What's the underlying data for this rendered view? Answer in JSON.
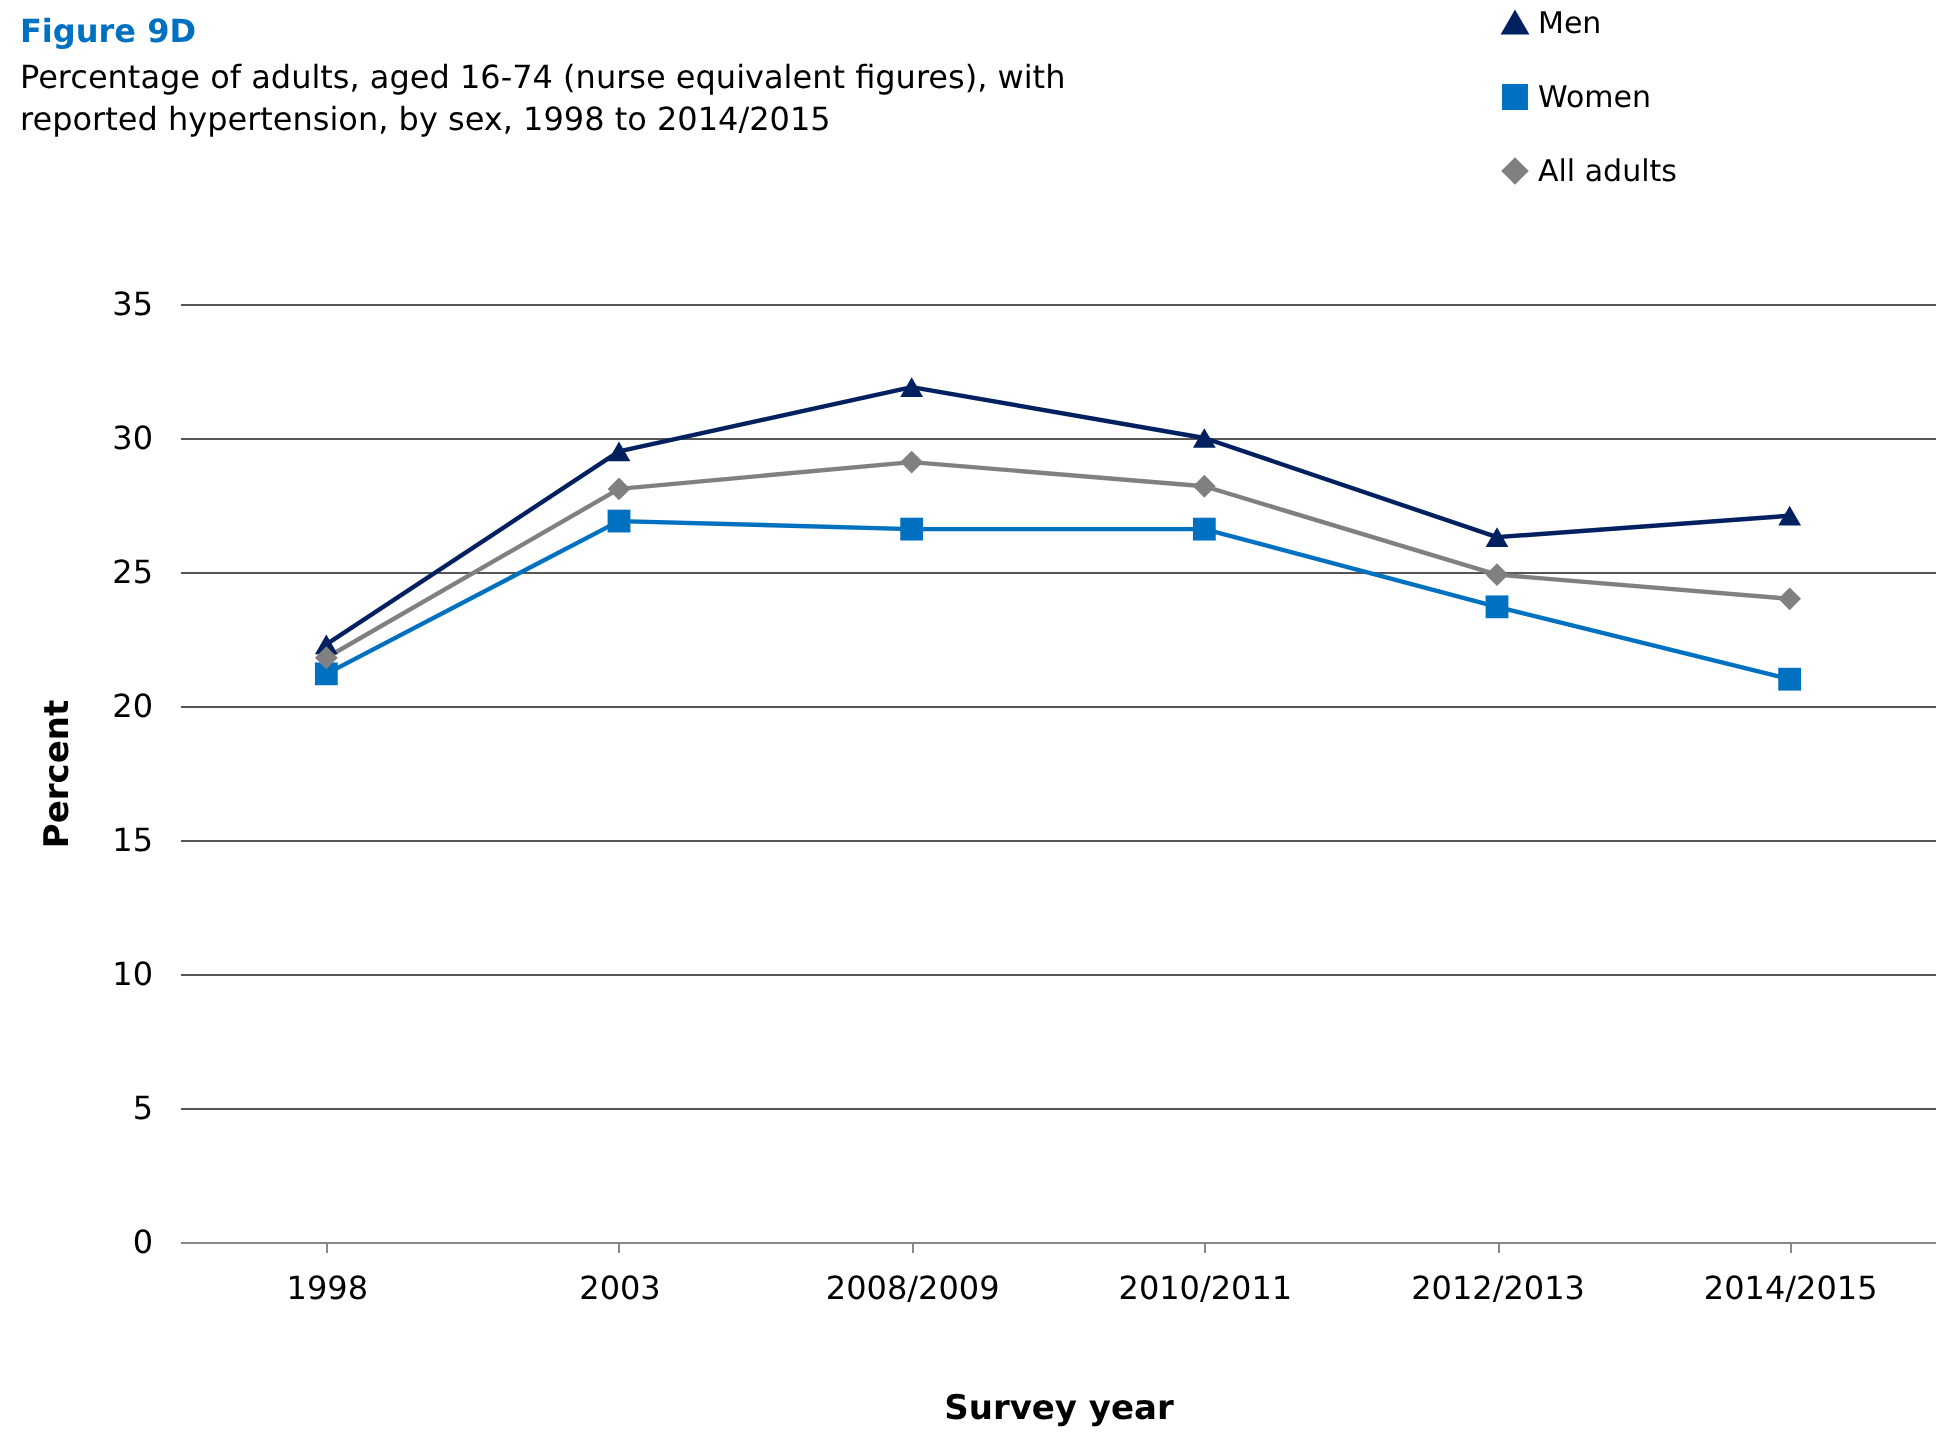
{
  "chart_data": {
    "type": "line",
    "title": "Figure 9D",
    "subtitle": "Percentage of adults, aged 16-74 (nurse equivalent figures), with reported hypertension, by sex, 1998 to 2014/2015",
    "xlabel": "Survey year",
    "ylabel": "Percent",
    "categories": [
      "1998",
      "2003",
      "2008/2009",
      "2010/2011",
      "2012/2013",
      "2014/2015"
    ],
    "series": [
      {
        "name": "Men",
        "color": "#002060",
        "marker": "triangle",
        "values": [
          22.3,
          29.5,
          31.9,
          30.0,
          26.3,
          27.1
        ]
      },
      {
        "name": "Women",
        "color": "#0070c0",
        "marker": "square",
        "values": [
          21.2,
          26.9,
          26.6,
          26.6,
          23.7,
          21.0
        ]
      },
      {
        "name": "All adults",
        "color": "#808080",
        "marker": "diamond",
        "values": [
          21.8,
          28.1,
          29.1,
          28.2,
          24.9,
          24.0
        ]
      }
    ],
    "ylim": [
      0,
      35
    ],
    "yticks": [
      0,
      5,
      10,
      15,
      20,
      25,
      30,
      35
    ],
    "grid": "y",
    "legend": "top right",
    "line_style": "solid"
  }
}
